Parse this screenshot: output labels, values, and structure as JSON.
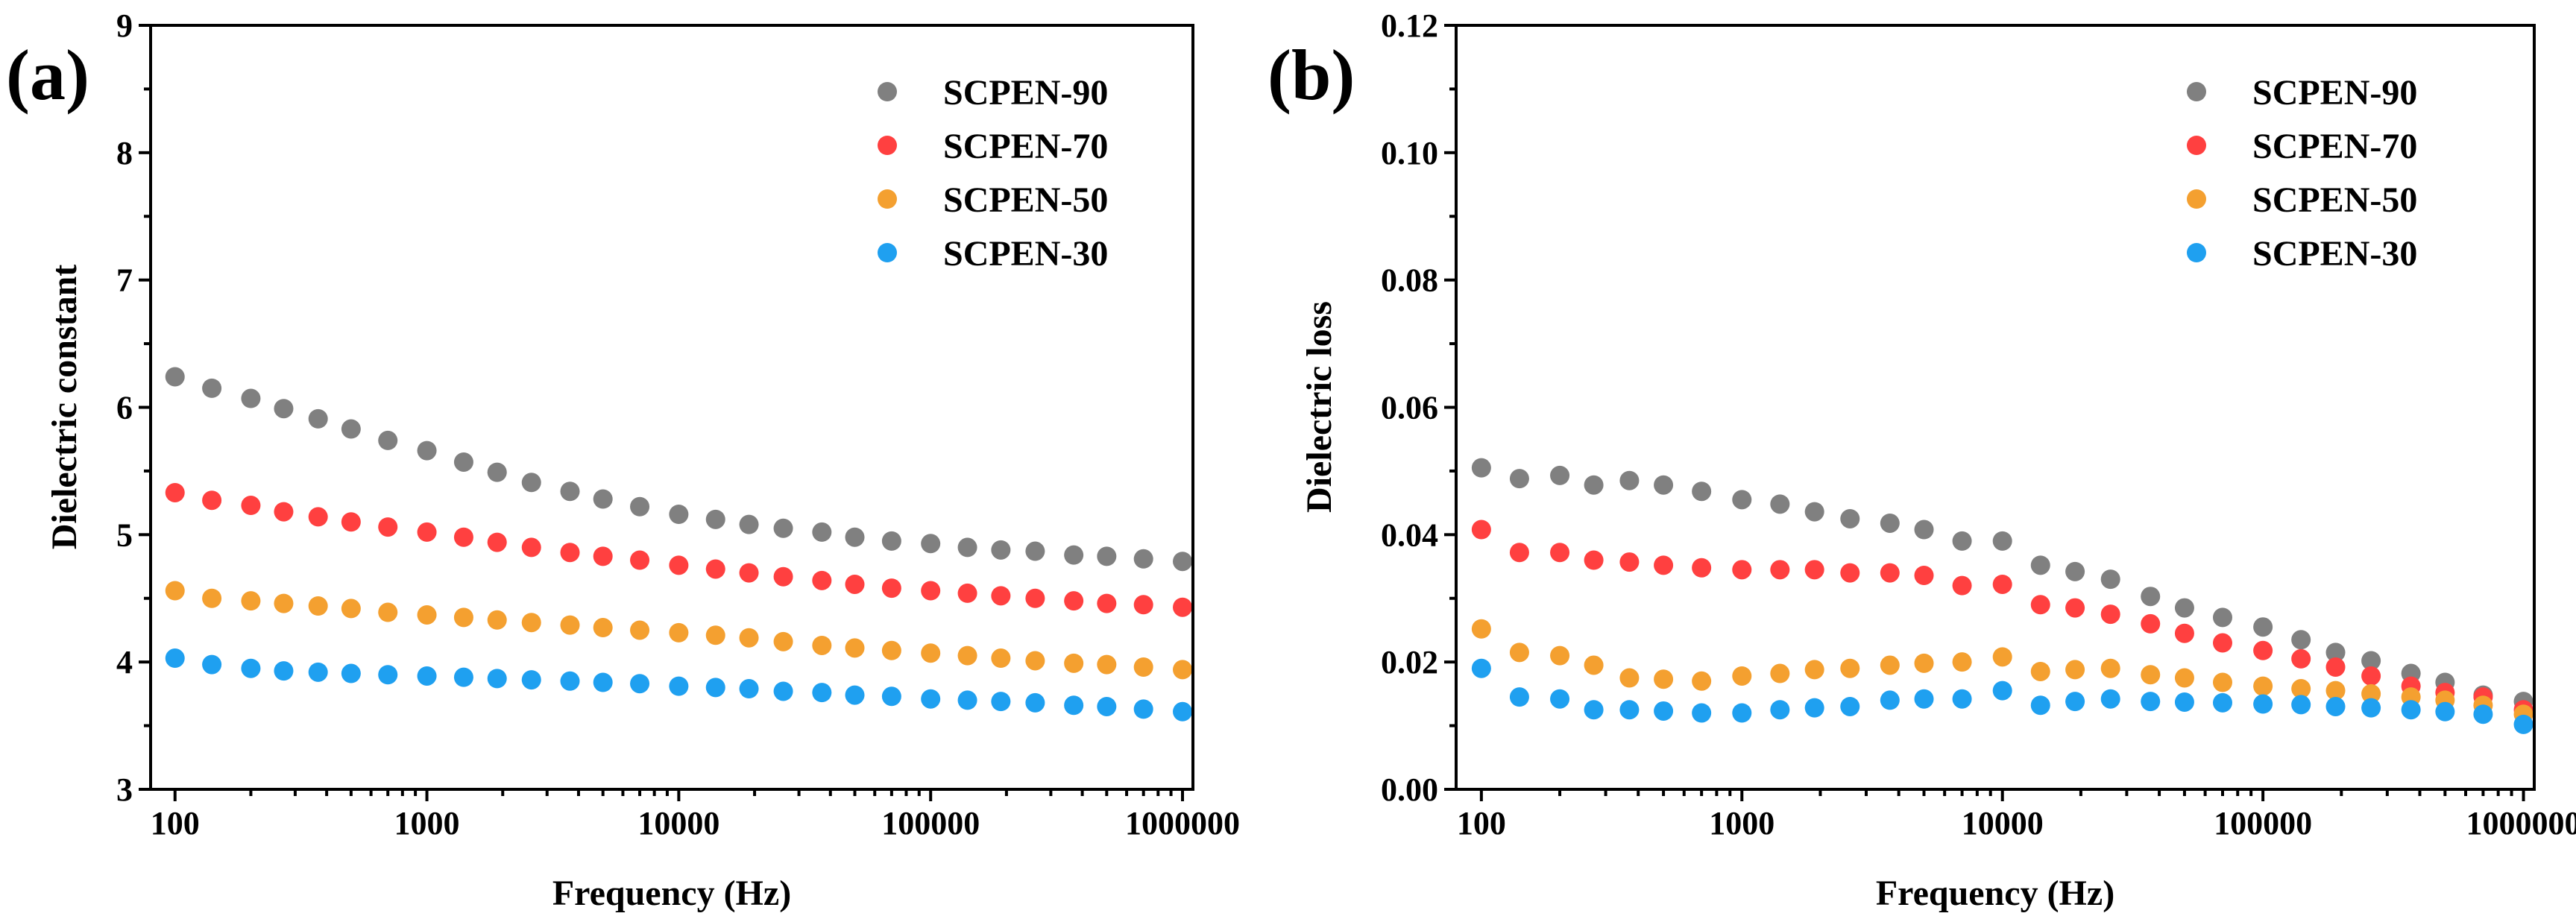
{
  "chart_data": [
    {
      "type": "scatter",
      "panel_label": "(a)",
      "xlabel": "Frequency (Hz)",
      "ylabel": "Dielectric constant",
      "xscale": "log",
      "xlim": [
        80,
        1100000
      ],
      "ylim": [
        3,
        9
      ],
      "xticks": [
        100,
        1000,
        10000,
        100000,
        1000000
      ],
      "xtick_labels": [
        "100",
        "1000",
        "10000",
        "100000",
        "1000000"
      ],
      "yticks": [
        3,
        4,
        5,
        6,
        7,
        8,
        9
      ],
      "ytick_labels": [
        "3",
        "4",
        "5",
        "6",
        "7",
        "8",
        "9"
      ],
      "legend_position": "top-right",
      "x": [
        100,
        140,
        200,
        270,
        370,
        500,
        700,
        1000,
        1400,
        1900,
        2600,
        3700,
        5000,
        7000,
        10000,
        14000,
        19000,
        26000,
        37000,
        50000,
        70000,
        100000,
        140000,
        190000,
        260000,
        370000,
        500000,
        700000,
        1000000
      ],
      "series": [
        {
          "name": "SCPEN-90",
          "color": "#808080",
          "values": [
            6.24,
            6.15,
            6.07,
            5.99,
            5.91,
            5.83,
            5.74,
            5.66,
            5.57,
            5.49,
            5.41,
            5.34,
            5.28,
            5.22,
            5.16,
            5.12,
            5.08,
            5.05,
            5.02,
            4.98,
            4.95,
            4.93,
            4.9,
            4.88,
            4.87,
            4.84,
            4.83,
            4.81,
            4.79
          ]
        },
        {
          "name": "SCPEN-70",
          "color": "#ff4040",
          "values": [
            5.33,
            5.27,
            5.23,
            5.18,
            5.14,
            5.1,
            5.06,
            5.02,
            4.98,
            4.94,
            4.9,
            4.86,
            4.83,
            4.8,
            4.76,
            4.73,
            4.7,
            4.67,
            4.64,
            4.61,
            4.58,
            4.56,
            4.54,
            4.52,
            4.5,
            4.48,
            4.46,
            4.45,
            4.43
          ]
        },
        {
          "name": "SCPEN-50",
          "color": "#f4a030",
          "values": [
            4.56,
            4.5,
            4.48,
            4.46,
            4.44,
            4.42,
            4.39,
            4.37,
            4.35,
            4.33,
            4.31,
            4.29,
            4.27,
            4.25,
            4.23,
            4.21,
            4.19,
            4.16,
            4.13,
            4.11,
            4.09,
            4.07,
            4.05,
            4.03,
            4.01,
            3.99,
            3.98,
            3.96,
            3.94
          ]
        },
        {
          "name": "SCPEN-30",
          "color": "#1fa0f0",
          "values": [
            4.03,
            3.98,
            3.95,
            3.93,
            3.92,
            3.91,
            3.9,
            3.89,
            3.88,
            3.87,
            3.86,
            3.85,
            3.84,
            3.83,
            3.81,
            3.8,
            3.79,
            3.77,
            3.76,
            3.74,
            3.73,
            3.71,
            3.7,
            3.69,
            3.68,
            3.66,
            3.65,
            3.63,
            3.61
          ]
        }
      ]
    },
    {
      "type": "scatter",
      "panel_label": "(b)",
      "xlabel": "Frequency (Hz)",
      "ylabel": "Dielectric loss",
      "xscale": "log",
      "xlim": [
        80,
        1100000
      ],
      "ylim": [
        0,
        0.12
      ],
      "xticks": [
        100,
        1000,
        10000,
        100000,
        1000000
      ],
      "xtick_labels": [
        "100",
        "1000",
        "10000",
        "100000",
        "1000000"
      ],
      "yticks": [
        0,
        0.02,
        0.04,
        0.06,
        0.08,
        0.1,
        0.12
      ],
      "ytick_labels": [
        "0.00",
        "0.02",
        "0.04",
        "0.06",
        "0.08",
        "0.10",
        "0.12"
      ],
      "legend_position": "top-right",
      "x": [
        100,
        140,
        200,
        270,
        370,
        500,
        700,
        1000,
        1400,
        1900,
        2600,
        3700,
        5000,
        7000,
        10000,
        14000,
        19000,
        26000,
        37000,
        50000,
        70000,
        100000,
        140000,
        190000,
        260000,
        370000,
        500000,
        700000,
        1000000
      ],
      "series": [
        {
          "name": "SCPEN-90",
          "color": "#808080",
          "values": [
            0.0505,
            0.0488,
            0.0493,
            0.0478,
            0.0485,
            0.0478,
            0.0468,
            0.0455,
            0.0448,
            0.0436,
            0.0425,
            0.0418,
            0.0408,
            0.039,
            0.039,
            0.0352,
            0.0342,
            0.033,
            0.0303,
            0.0285,
            0.027,
            0.0255,
            0.0235,
            0.0215,
            0.0202,
            0.0182,
            0.0168,
            0.0148,
            0.0138
          ]
        },
        {
          "name": "SCPEN-70",
          "color": "#ff4040",
          "values": [
            0.0408,
            0.0372,
            0.0372,
            0.036,
            0.0357,
            0.0352,
            0.0348,
            0.0345,
            0.0345,
            0.0345,
            0.034,
            0.034,
            0.0336,
            0.032,
            0.0322,
            0.029,
            0.0285,
            0.0275,
            0.026,
            0.0245,
            0.023,
            0.0218,
            0.0205,
            0.0192,
            0.0178,
            0.0162,
            0.0152,
            0.0145,
            0.0125
          ]
        },
        {
          "name": "SCPEN-50",
          "color": "#f4a030",
          "values": [
            0.0252,
            0.0215,
            0.021,
            0.0195,
            0.0175,
            0.0173,
            0.017,
            0.0178,
            0.0182,
            0.0188,
            0.019,
            0.0195,
            0.0198,
            0.02,
            0.0208,
            0.0185,
            0.0188,
            0.019,
            0.018,
            0.0175,
            0.0168,
            0.0162,
            0.0158,
            0.0155,
            0.015,
            0.0145,
            0.014,
            0.0132,
            0.0118
          ]
        },
        {
          "name": "SCPEN-30",
          "color": "#1fa0f0",
          "values": [
            0.019,
            0.0145,
            0.0142,
            0.0125,
            0.0125,
            0.0123,
            0.012,
            0.012,
            0.0125,
            0.0128,
            0.013,
            0.014,
            0.0142,
            0.0142,
            0.0155,
            0.0132,
            0.0138,
            0.0142,
            0.0138,
            0.0137,
            0.0136,
            0.0134,
            0.0133,
            0.013,
            0.0128,
            0.0125,
            0.0122,
            0.0118,
            0.0102
          ]
        }
      ]
    }
  ]
}
